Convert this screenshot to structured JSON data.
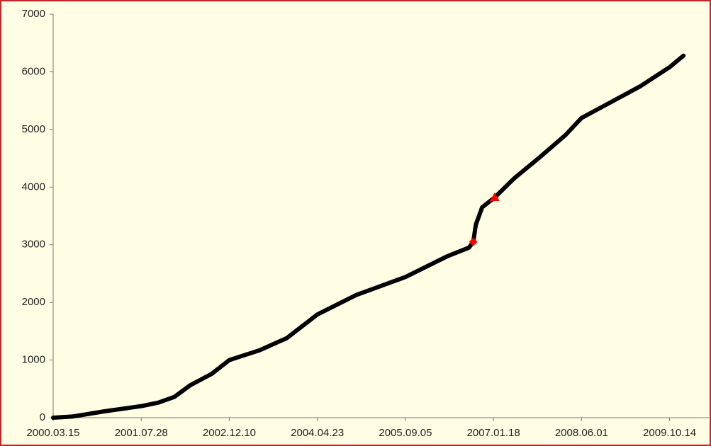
{
  "chart_data": {
    "type": "line",
    "background": "#fffde3",
    "border_color": "#c0272d",
    "grid": false,
    "xlim": [
      "2000.03.15",
      "2010.05.25"
    ],
    "xticks": [
      "2000.03.15",
      "2001.07.28",
      "2002.12.10",
      "2004.04.23",
      "2005.09.05",
      "2007.01.18",
      "2008.06.01",
      "2009.10.14"
    ],
    "ylim": [
      0,
      7000
    ],
    "yticks": [
      0,
      1000,
      2000,
      3000,
      4000,
      5000,
      6000,
      7000
    ],
    "series": [
      {
        "color": "#000000",
        "x": [
          "2000.03.15",
          "2000.07.01",
          "2001.01.01",
          "2001.07.28",
          "2001.11.01",
          "2002.02.01",
          "2002.05.01",
          "2002.09.01",
          "2002.12.10",
          "2003.06.01",
          "2003.11.01",
          "2004.04.23",
          "2004.12.01",
          "2005.09.05",
          "2006.05.01",
          "2006.09.01",
          "2006.09.25",
          "2006.10.10",
          "2006.11.15",
          "2007.01.25",
          "2007.05.15",
          "2007.10.01",
          "2008.03.01",
          "2008.06.01",
          "2008.12.01",
          "2009.05.01",
          "2009.10.14",
          "2010.01.01"
        ],
        "values": [
          0,
          20,
          110,
          200,
          260,
          360,
          560,
          760,
          1000,
          1170,
          1380,
          1790,
          2130,
          2440,
          2800,
          2950,
          3050,
          3350,
          3650,
          3820,
          4150,
          4500,
          4900,
          5200,
          5500,
          5750,
          6080,
          6280
        ]
      }
    ],
    "markers": [
      {
        "shape": "diamond",
        "color": "#ff0000",
        "x": "2006.09.25",
        "y": 3050
      },
      {
        "shape": "triangle",
        "color": "#ff0000",
        "x": "2007.01.25",
        "y": 3820
      }
    ]
  }
}
